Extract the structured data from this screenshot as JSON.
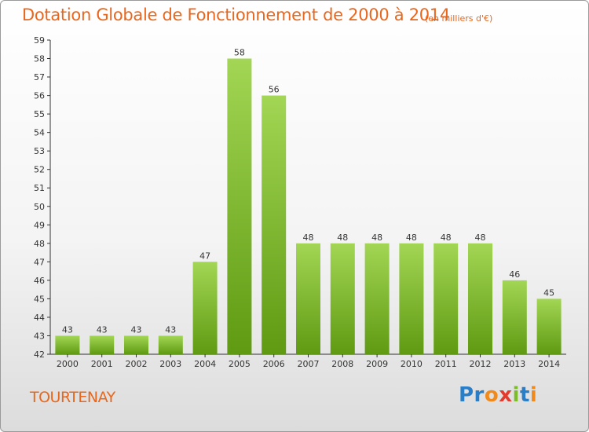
{
  "chart_data": {
    "type": "bar",
    "title": "Dotation Globale de Fonctionnement de 2000 à 2014",
    "subtitle": "(en milliers d'€)",
    "categories": [
      "2000",
      "2001",
      "2002",
      "2003",
      "2004",
      "2005",
      "2006",
      "2007",
      "2008",
      "2009",
      "2010",
      "2011",
      "2012",
      "2013",
      "2014"
    ],
    "values": [
      43,
      43,
      43,
      43,
      47,
      58,
      56,
      48,
      48,
      48,
      48,
      48,
      48,
      46,
      45
    ],
    "ylim": [
      42,
      59
    ],
    "yticks": [
      42,
      43,
      44,
      45,
      46,
      47,
      48,
      49,
      50,
      51,
      52,
      53,
      54,
      55,
      56,
      57,
      58,
      59
    ],
    "grid": false,
    "bar_color": "#7cb728"
  },
  "town": "TOURTENAY",
  "logo": {
    "p1": "Pr",
    "o": "o",
    "x": "x",
    "i1": "i",
    "t": "t",
    "i2": "i"
  }
}
